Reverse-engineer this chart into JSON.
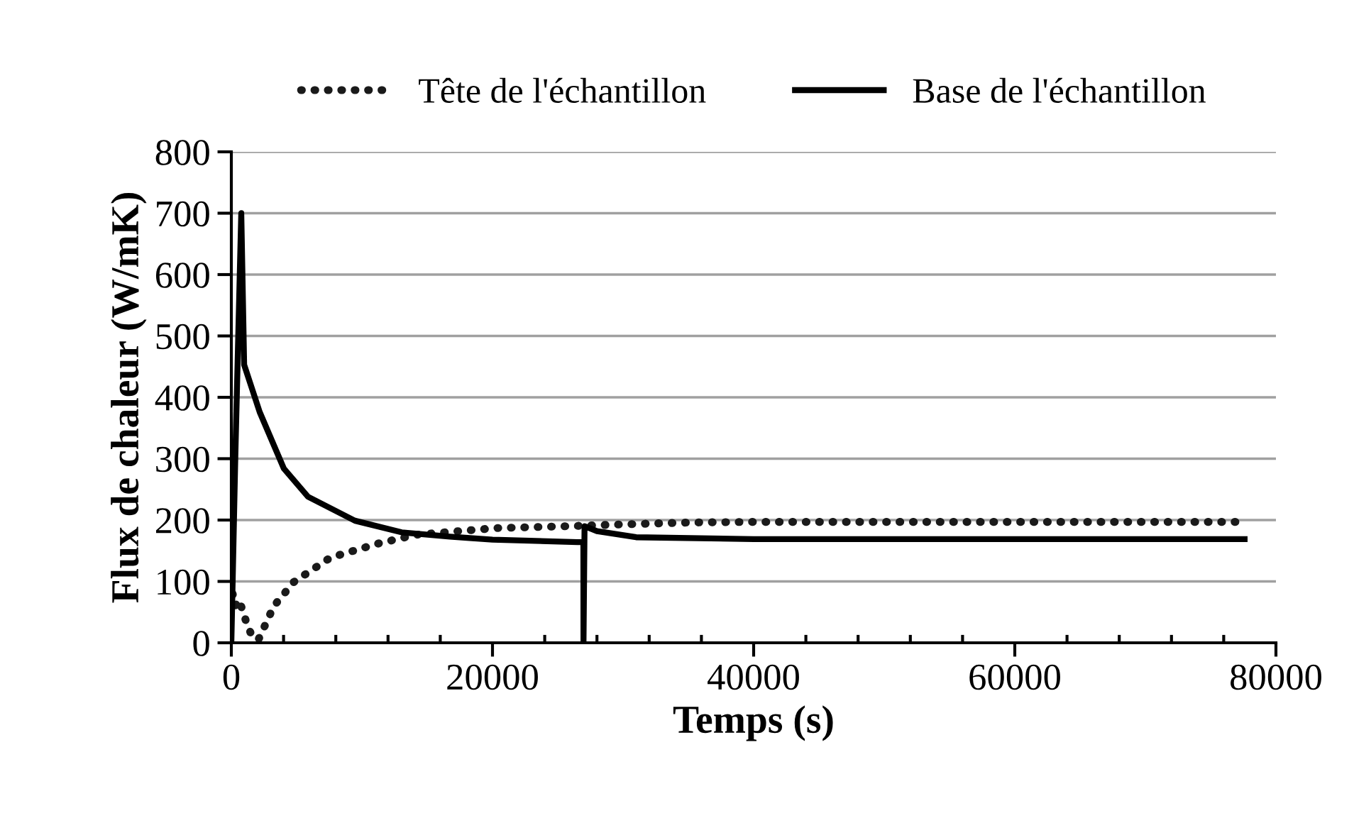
{
  "chart_data": {
    "type": "line",
    "xlabel": "Temps (s)",
    "ylabel": "Flux de chaleur (W/mK)",
    "legend": "top",
    "grid": "y",
    "xlim": [
      0,
      80000
    ],
    "ylim": [
      0,
      800
    ],
    "xticks": [
      0,
      {
        "value": 4000,
        "label": null
      },
      {
        "value": 8000,
        "label": null
      },
      {
        "value": 12000,
        "label": null
      },
      {
        "value": 16000,
        "label": null
      },
      20000,
      {
        "value": 24000,
        "label": null
      },
      {
        "value": 28000,
        "label": null
      },
      {
        "value": 32000,
        "label": null
      },
      {
        "value": 36000,
        "label": null
      },
      40000,
      {
        "value": 44000,
        "label": null
      },
      {
        "value": 48000,
        "label": null
      },
      {
        "value": 52000,
        "label": null
      },
      {
        "value": 56000,
        "label": null
      },
      60000,
      {
        "value": 64000,
        "label": null
      },
      {
        "value": 68000,
        "label": null
      },
      {
        "value": 72000,
        "label": null
      },
      {
        "value": 76000,
        "label": null
      },
      80000
    ],
    "yticks": [
      0,
      100,
      200,
      300,
      400,
      500,
      600,
      700,
      800
    ],
    "series": [
      {
        "name": "Tête de l'échantillon",
        "color": "#1a1a1a",
        "line_style": "dotted",
        "x": [
          100,
          300,
          600,
          900,
          1200,
          1600,
          2070,
          3260,
          4780,
          7600,
          11300,
          14130,
          20330,
          25800,
          30000,
          35000,
          40000,
          50000,
          60000,
          70000,
          77000
        ],
        "values": [
          80,
          60,
          70,
          50,
          30,
          10,
          5,
          60,
          99,
          139,
          162,
          176,
          187,
          190,
          193,
          196,
          197,
          197,
          197,
          197,
          197
        ]
      },
      {
        "name": "Base de l'échantillon",
        "color": "#000000",
        "line_style": "solid",
        "x": [
          0,
          300,
          760,
          980,
          2170,
          4020,
          5870,
          9460,
          13040,
          16740,
          20000,
          26520,
          26960,
          26970,
          27050,
          28000,
          31000,
          40000,
          60000,
          77600
        ],
        "values": [
          0,
          300,
          700,
          453,
          376,
          284,
          238,
          199,
          180,
          173,
          168,
          164,
          164,
          0,
          190,
          182,
          172,
          169,
          169,
          169
        ]
      }
    ]
  }
}
